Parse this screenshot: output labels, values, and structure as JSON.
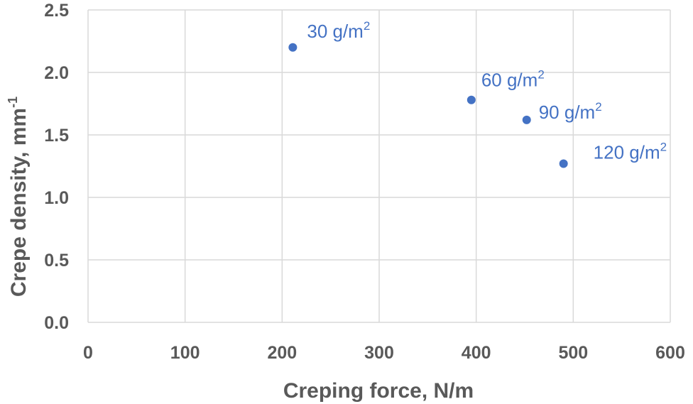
{
  "chart_data": {
    "type": "scatter",
    "title": "",
    "xlabel": "Creping force, N/m",
    "ylabel": "Crepe density, mm",
    "ylabel_superscript": "-1",
    "xlim": [
      0,
      600
    ],
    "ylim": [
      0,
      2.5
    ],
    "xticks": [
      "0",
      "100",
      "200",
      "300",
      "400",
      "500",
      "600"
    ],
    "yticks": [
      "0.0",
      "0.5",
      "1.0",
      "1.5",
      "2.0",
      "2.5"
    ],
    "grid": true,
    "legend": "none",
    "color": "#4472C4",
    "points": [
      {
        "x": 211,
        "y": 2.2,
        "label": "30 g/m",
        "sup": "2"
      },
      {
        "x": 395,
        "y": 1.78,
        "label": "60 g/m",
        "sup": "2"
      },
      {
        "x": 452,
        "y": 1.62,
        "label": "90 g/m",
        "sup": "2"
      },
      {
        "x": 490,
        "y": 1.27,
        "label": "120 g/m",
        "sup": "2"
      }
    ]
  }
}
